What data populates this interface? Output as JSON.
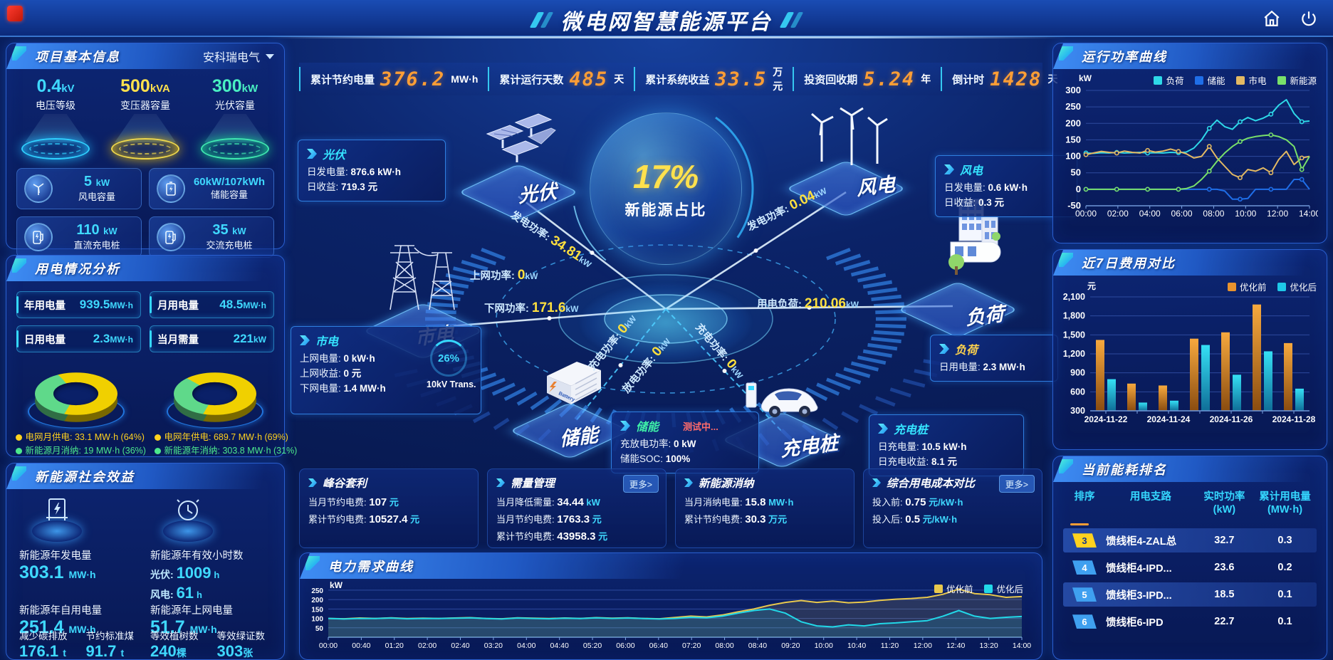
{
  "header": {
    "title": "微电网智慧能源平台"
  },
  "kpis": [
    {
      "label": "累计节约电量",
      "value": "376.2",
      "unit": "MW·h"
    },
    {
      "label": "累计运行天数",
      "value": "485",
      "unit": "天"
    },
    {
      "label": "累计系统收益",
      "value": "33.5",
      "unit": "万元"
    },
    {
      "label": "投资回收期",
      "value": "5.24",
      "unit": "年"
    },
    {
      "label": "倒计时",
      "value": "1428",
      "unit": "天"
    }
  ],
  "project_info": {
    "title": "项目基本信息",
    "company": "安科瑞电气",
    "pedestals": [
      {
        "value": "0.4",
        "unit": "kV",
        "label": "电压等级",
        "color": "#3fd9ff"
      },
      {
        "value": "500",
        "unit": "kVA",
        "label": "变压器容量",
        "color": "#ffe14d"
      },
      {
        "value": "300",
        "unit": "kW",
        "label": "光伏容量",
        "color": "#49f0c2"
      }
    ],
    "cards": [
      {
        "value": "5",
        "unit": "kW",
        "label": "风电容量",
        "icon": "wind-turbine-icon"
      },
      {
        "value": "60kW/107kWh",
        "unit": "",
        "label": "储能容量",
        "icon": "battery-icon"
      },
      {
        "value": "110",
        "unit": "kW",
        "label": "直流充电桩",
        "icon": "charger-icon"
      },
      {
        "value": "35",
        "unit": "kW",
        "label": "交流充电桩",
        "icon": "charger-icon"
      }
    ]
  },
  "power_analysis": {
    "title": "用电情况分析",
    "stats": [
      {
        "label": "年用电量",
        "value": "939.5",
        "unit": "MW·h"
      },
      {
        "label": "月用电量",
        "value": "48.5",
        "unit": "MW·h"
      },
      {
        "label": "日用电量",
        "value": "2.3",
        "unit": "MW·h"
      },
      {
        "label": "当月需量",
        "value": "221",
        "unit": "kW"
      }
    ],
    "donut_month_legend": [
      {
        "label": "电网月供电:",
        "value": "33.1 MW·h (64%)",
        "color": "#ffd21f"
      },
      {
        "label": "新能源月消纳:",
        "value": "19 MW·h (36%)",
        "color": "#4de88c"
      }
    ],
    "donut_year_legend": [
      {
        "label": "电网年供电:",
        "value": "689.7 MW·h (69%)",
        "color": "#ffd21f"
      },
      {
        "label": "新能源年消纳:",
        "value": "303.8 MW·h (31%)",
        "color": "#4de88c"
      }
    ]
  },
  "social_benefit": {
    "title": "新能源社会效益",
    "items": [
      {
        "label": "新能源年发电量",
        "value": "303.1",
        "unit": "MW·h"
      },
      {
        "label": "新能源年有效小时数",
        "pv_label": "光伏:",
        "pv_value": "1009",
        "pv_unit": "h",
        "wind_label": "风电:",
        "wind_value": "61",
        "wind_unit": "h"
      },
      {
        "label": "新能源年自用电量",
        "value": "251.4",
        "unit": "MW·h"
      },
      {
        "label": "新能源年上网电量",
        "value": "51.7",
        "unit": "MW·h"
      },
      {
        "label": "减少碳排放",
        "value": "176.1",
        "unit": "t"
      },
      {
        "label": "节约标准煤",
        "value": "91.7",
        "unit": "t"
      },
      {
        "label": "等效植树数",
        "value": "240",
        "unit": "棵"
      },
      {
        "label": "等效绿证数",
        "value": "303",
        "unit": "张"
      }
    ]
  },
  "topology": {
    "center_pct": "17%",
    "center_label": "新能源占比",
    "transformer": {
      "pct": "26%",
      "label": "10kV Trans."
    },
    "boxes": {
      "pv": {
        "title": "光伏",
        "rows": [
          {
            "k": "日发电量:",
            "v": "876.6 kW·h"
          },
          {
            "k": "日收益:",
            "v": "719.3 元"
          }
        ]
      },
      "wind": {
        "title": "风电",
        "rows": [
          {
            "k": "日发电量:",
            "v": "0.6 kW·h"
          },
          {
            "k": "日收益:",
            "v": "0.3 元"
          }
        ]
      },
      "grid": {
        "title": "市电",
        "rows": [
          {
            "k": "上网电量:",
            "v": "0 kW·h"
          },
          {
            "k": "上网收益:",
            "v": "0 元"
          },
          {
            "k": "下网电量:",
            "v": "1.4 MW·h"
          }
        ]
      },
      "storage": {
        "title": "储能",
        "status": "测试中...",
        "rows": [
          {
            "k": "充放电功率:",
            "v": "0 kW"
          },
          {
            "k": "储能SOC:",
            "v": "100%"
          }
        ]
      },
      "load": {
        "title": "负荷",
        "rows": [
          {
            "k": "日用电量:",
            "v": "2.3 MW·h"
          }
        ]
      },
      "charger": {
        "title": "充电桩",
        "rows": [
          {
            "k": "日充电量:",
            "v": "10.5 kW·h"
          },
          {
            "k": "日充电收益:",
            "v": "8.1 元"
          }
        ]
      }
    },
    "node_labels": {
      "pv": "光伏",
      "wind": "风电",
      "grid": "市电",
      "storage": "储能",
      "load": "负荷",
      "charger": "充电桩"
    },
    "flows": {
      "pv_gen": {
        "label": "发电功率:",
        "value": "34.81",
        "unit": "kW"
      },
      "wind_gen": {
        "label": "发电功率:",
        "value": "0.04",
        "unit": "kW"
      },
      "grid_up": {
        "label": "上网功率:",
        "value": "0",
        "unit": "kW"
      },
      "grid_down": {
        "label": "下网功率:",
        "value": "171.6",
        "unit": "kW"
      },
      "load_demand": {
        "label": "用电负荷:",
        "value": "210.06",
        "unit": "kW"
      },
      "storage_chg": {
        "label": "充电功率:",
        "value": "0",
        "unit": "kW"
      },
      "storage_dis": {
        "label": "放电功率:",
        "value": "0",
        "unit": "kW"
      },
      "charger_chg": {
        "label": "充电功率:",
        "value": "0",
        "unit": "kW"
      }
    }
  },
  "benefit_panels": [
    {
      "title": "峰谷套利",
      "more": "",
      "rows": [
        {
          "label": "当月节约电费:",
          "value": "107",
          "unit": "元"
        },
        {
          "label": "累计节约电费:",
          "value": "10527.4",
          "unit": "元"
        }
      ]
    },
    {
      "title": "需量管理",
      "more": "更多>",
      "rows": [
        {
          "label": "当月降低需量:",
          "value": "34.44",
          "unit": "kW"
        },
        {
          "label": "当月节约电费:",
          "value": "1763.3",
          "unit": "元"
        },
        {
          "label": "累计节约电费:",
          "value": "43958.3",
          "unit": "元"
        }
      ]
    },
    {
      "title": "新能源消纳",
      "more": "",
      "rows": [
        {
          "label": "当月消纳电量:",
          "value": "15.8",
          "unit": "MW·h"
        },
        {
          "label": "累计节约电费:",
          "value": "30.3",
          "unit": "万元"
        }
      ]
    },
    {
      "title": "综合用电成本对比",
      "more": "更多>",
      "rows": [
        {
          "label": "投入前:",
          "value": "0.75",
          "unit": "元/kW·h"
        },
        {
          "label": "投入后:",
          "value": "0.5",
          "unit": "元/kW·h"
        }
      ]
    }
  ],
  "rank_panel": {
    "title": "当前能耗排名",
    "headers": [
      "排序",
      "用电支路",
      "实时功率\n(kW)",
      "累计用电量\n(MW·h)"
    ],
    "rows": [
      {
        "rank": "3",
        "branch": "馈线柜4-ZAL总",
        "power": "32.7",
        "energy": "0.3",
        "badge": "yellow",
        "highlight": true
      },
      {
        "rank": "4",
        "branch": "馈线柜4-IPD...",
        "power": "23.6",
        "energy": "0.2",
        "badge": "blue",
        "highlight": false
      },
      {
        "rank": "5",
        "branch": "馈线柜3-IPD...",
        "power": "18.5",
        "energy": "0.1",
        "badge": "blue",
        "highlight": true
      },
      {
        "rank": "6",
        "branch": "馈线柜6-IPD",
        "power": "22.7",
        "energy": "0.1",
        "badge": "blue",
        "highlight": false
      }
    ]
  },
  "chart_data": [
    {
      "id": "power_curve",
      "type": "line",
      "title": "运行功率曲线",
      "ylabel": "kW",
      "ylim": [
        -50,
        300
      ],
      "yticks": [
        -50,
        0,
        50,
        100,
        150,
        200,
        250,
        300
      ],
      "xticks": [
        "00:00",
        "02:00",
        "04:00",
        "06:00",
        "08:00",
        "10:00",
        "12:00",
        "14:00"
      ],
      "legend_position": "top",
      "grid": true,
      "series": [
        {
          "name": "负荷",
          "color": "#2ed9e8",
          "values": [
            110,
            109,
            111,
            110,
            112,
            110,
            111,
            112,
            110,
            111,
            110,
            112,
            111,
            113,
            125,
            150,
            185,
            210,
            190,
            182,
            205,
            218,
            208,
            216,
            228,
            255,
            272,
            230,
            205,
            207
          ]
        },
        {
          "name": "储能",
          "color": "#1f6ee8",
          "values": [
            0,
            0,
            0,
            0,
            0,
            0,
            0,
            0,
            0,
            0,
            0,
            0,
            0,
            0,
            0,
            0,
            0,
            0,
            -5,
            -30,
            -30,
            -28,
            0,
            0,
            0,
            0,
            0,
            30,
            30,
            0
          ]
        },
        {
          "name": "市电",
          "color": "#e3b963",
          "values": [
            105,
            110,
            115,
            112,
            110,
            116,
            112,
            110,
            118,
            113,
            116,
            122,
            115,
            108,
            95,
            100,
            130,
            95,
            70,
            45,
            35,
            60,
            55,
            65,
            50,
            90,
            115,
            75,
            95,
            100
          ]
        },
        {
          "name": "新能源",
          "color": "#79e06a",
          "values": [
            0,
            0,
            0,
            0,
            0,
            0,
            0,
            0,
            0,
            0,
            0,
            0,
            0,
            2,
            10,
            30,
            55,
            85,
            110,
            130,
            145,
            155,
            160,
            163,
            165,
            160,
            150,
            130,
            60,
            100
          ]
        }
      ]
    },
    {
      "id": "cost_compare",
      "type": "bar",
      "title": "近7日费用对比",
      "ylabel": "元",
      "ylim": [
        300,
        2100
      ],
      "yticks": [
        300,
        600,
        900,
        1200,
        1500,
        1800,
        2100
      ],
      "categories": [
        "2024-11-22",
        "2024-11-23",
        "2024-11-24",
        "2024-11-25",
        "2024-11-26",
        "2024-11-27",
        "2024-11-28"
      ],
      "xtick_labels_shown": [
        "2024-11-22",
        "2024-11-24",
        "2024-11-26",
        "2024-11-28"
      ],
      "legend_position": "top",
      "grid": true,
      "series": [
        {
          "name": "优化前",
          "color": "#e8932e",
          "values": [
            1420,
            730,
            700,
            1440,
            1540,
            1980,
            1370
          ]
        },
        {
          "name": "优化后",
          "color": "#1ec8e8",
          "values": [
            800,
            430,
            460,
            1340,
            870,
            1240,
            650
          ]
        }
      ]
    },
    {
      "id": "demand_curve",
      "type": "line",
      "title": "电力需求曲线",
      "ylabel": "kW",
      "ylim": [
        0,
        280
      ],
      "yticks": [
        50,
        100,
        150,
        200,
        250
      ],
      "xticks": [
        "00:00",
        "00:40",
        "01:20",
        "02:00",
        "02:40",
        "03:20",
        "04:00",
        "04:40",
        "05:20",
        "06:00",
        "06:40",
        "07:20",
        "08:00",
        "08:40",
        "09:20",
        "10:00",
        "10:40",
        "11:20",
        "12:00",
        "12:40",
        "13:20",
        "14:00"
      ],
      "legend_position": "top-right",
      "grid": true,
      "series": [
        {
          "name": "优化前",
          "color": "#e8c84d",
          "values": [
            100,
            98,
            102,
            100,
            103,
            99,
            101,
            100,
            102,
            104,
            100,
            98,
            103,
            101,
            99,
            102,
            100,
            104,
            101,
            103,
            100,
            98,
            105,
            112,
            108,
            118,
            135,
            150,
            170,
            185,
            195,
            185,
            192,
            183,
            187,
            196,
            202,
            206,
            212,
            228,
            256,
            232,
            226,
            212,
            216
          ]
        },
        {
          "name": "优化后",
          "color": "#22d8e8",
          "values": [
            100,
            97,
            100,
            99,
            102,
            98,
            100,
            99,
            101,
            103,
            99,
            97,
            102,
            100,
            98,
            101,
            99,
            103,
            100,
            102,
            99,
            97,
            100,
            106,
            103,
            112,
            128,
            142,
            150,
            128,
            82,
            60,
            55,
            66,
            60,
            72,
            76,
            82,
            88,
            112,
            142,
            112,
            100,
            106,
            110
          ]
        }
      ]
    },
    {
      "id": "donut_month",
      "type": "pie",
      "labels": [
        "电网月供电",
        "新能源月消纳"
      ],
      "values": [
        64,
        36
      ],
      "colors": [
        "#f0d000",
        "#5fd98a"
      ]
    },
    {
      "id": "donut_year",
      "type": "pie",
      "labels": [
        "电网年供电",
        "新能源年消纳"
      ],
      "values": [
        69,
        31
      ],
      "colors": [
        "#f0d000",
        "#5fd98a"
      ]
    }
  ]
}
